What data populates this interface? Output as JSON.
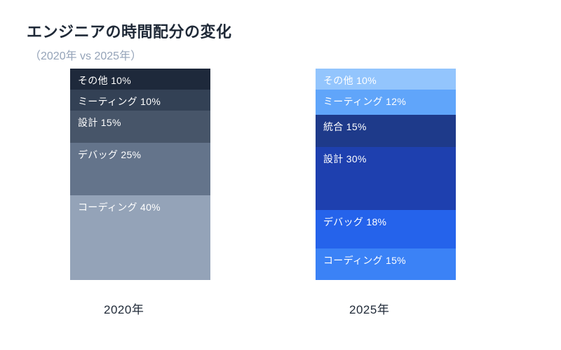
{
  "chart_data": {
    "type": "bar",
    "variant": "stacked-percentage-comparison",
    "title": "エンジニアの時間配分の変化",
    "subtitle": "（2020年 vs 2025年）",
    "unit": "%",
    "ylim": [
      0,
      100
    ],
    "legend_position": "none",
    "grid": false,
    "columns": [
      {
        "label": "2020年",
        "segments": [
          {
            "name": "その他",
            "value": 10,
            "display": "その他 10%",
            "color": "#1e293b"
          },
          {
            "name": "ミーティング",
            "value": 10,
            "display": "ミーティング 10%",
            "color": "#334155"
          },
          {
            "name": "設計",
            "value": 15,
            "display": "設計 15%",
            "color": "#475569"
          },
          {
            "name": "デバッグ",
            "value": 25,
            "display": "デバッグ 25%",
            "color": "#64748b"
          },
          {
            "name": "コーディング",
            "value": 40,
            "display": "コーディング 40%",
            "color": "#94a3b8"
          }
        ]
      },
      {
        "label": "2025年",
        "segments": [
          {
            "name": "その他",
            "value": 10,
            "display": "その他 10%",
            "color": "#93c5fd"
          },
          {
            "name": "ミーティング",
            "value": 12,
            "display": "ミーティング 12%",
            "color": "#60a5fa"
          },
          {
            "name": "統合",
            "value": 15,
            "display": "統合 15%",
            "color": "#1e3a8a"
          },
          {
            "name": "設計",
            "value": 30,
            "display": "設計 30%",
            "color": "#1e40af"
          },
          {
            "name": "デバッグ",
            "value": 18,
            "display": "デバッグ 18%",
            "color": "#2563eb"
          },
          {
            "name": "コーディング",
            "value": 15,
            "display": "コーディング 15%",
            "color": "#3b82f6"
          }
        ]
      }
    ],
    "segment_order": "top-to-bottom"
  }
}
